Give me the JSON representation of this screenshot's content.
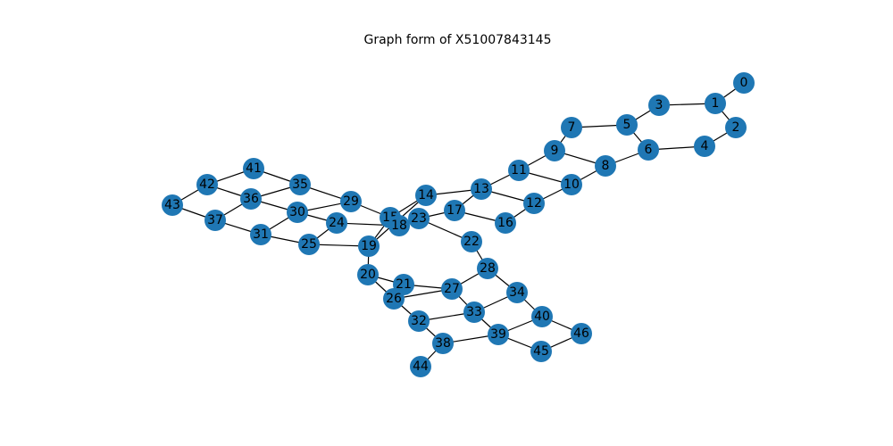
{
  "title": "Graph form of X51007843145",
  "node_color": "#1f77b4",
  "edge_color": "#000000",
  "graph": {
    "nodes": [
      "0",
      "1",
      "2",
      "3",
      "4",
      "5",
      "6",
      "7",
      "8",
      "9",
      "10",
      "11",
      "12",
      "13",
      "14",
      "15",
      "16",
      "17",
      "18",
      "19",
      "20",
      "21",
      "22",
      "23",
      "24",
      "25",
      "26",
      "27",
      "28",
      "29",
      "30",
      "31",
      "32",
      "33",
      "34",
      "35",
      "36",
      "37",
      "38",
      "39",
      "40",
      "41",
      "42",
      "43",
      "44",
      "45",
      "46"
    ],
    "edges": [
      [
        "0",
        "1"
      ],
      [
        "1",
        "2"
      ],
      [
        "1",
        "3"
      ],
      [
        "2",
        "4"
      ],
      [
        "3",
        "5"
      ],
      [
        "4",
        "6"
      ],
      [
        "5",
        "6"
      ],
      [
        "5",
        "7"
      ],
      [
        "6",
        "8"
      ],
      [
        "7",
        "9"
      ],
      [
        "8",
        "9"
      ],
      [
        "8",
        "10"
      ],
      [
        "9",
        "11"
      ],
      [
        "10",
        "11"
      ],
      [
        "10",
        "12"
      ],
      [
        "11",
        "13"
      ],
      [
        "12",
        "13"
      ],
      [
        "12",
        "16"
      ],
      [
        "13",
        "14"
      ],
      [
        "13",
        "17"
      ],
      [
        "14",
        "15"
      ],
      [
        "14",
        "19"
      ],
      [
        "15",
        "18"
      ],
      [
        "15",
        "29"
      ],
      [
        "16",
        "17"
      ],
      [
        "17",
        "23"
      ],
      [
        "18",
        "23"
      ],
      [
        "18",
        "24"
      ],
      [
        "15",
        "19"
      ],
      [
        "19",
        "25"
      ],
      [
        "19",
        "20"
      ],
      [
        "20",
        "21"
      ],
      [
        "20",
        "26"
      ],
      [
        "21",
        "27"
      ],
      [
        "22",
        "23"
      ],
      [
        "22",
        "28"
      ],
      [
        "24",
        "30"
      ],
      [
        "24",
        "25"
      ],
      [
        "25",
        "31"
      ],
      [
        "26",
        "27"
      ],
      [
        "26",
        "32"
      ],
      [
        "27",
        "28"
      ],
      [
        "27",
        "33"
      ],
      [
        "28",
        "34"
      ],
      [
        "29",
        "30"
      ],
      [
        "29",
        "35"
      ],
      [
        "30",
        "36"
      ],
      [
        "30",
        "31"
      ],
      [
        "31",
        "37"
      ],
      [
        "32",
        "33"
      ],
      [
        "32",
        "38"
      ],
      [
        "33",
        "34"
      ],
      [
        "33",
        "39"
      ],
      [
        "34",
        "40"
      ],
      [
        "35",
        "36"
      ],
      [
        "35",
        "41"
      ],
      [
        "36",
        "37"
      ],
      [
        "36",
        "42"
      ],
      [
        "37",
        "43"
      ],
      [
        "38",
        "39"
      ],
      [
        "38",
        "44"
      ],
      [
        "39",
        "40"
      ],
      [
        "39",
        "45"
      ],
      [
        "40",
        "46"
      ],
      [
        "41",
        "42"
      ],
      [
        "42",
        "43"
      ],
      [
        "45",
        "46"
      ]
    ]
  }
}
